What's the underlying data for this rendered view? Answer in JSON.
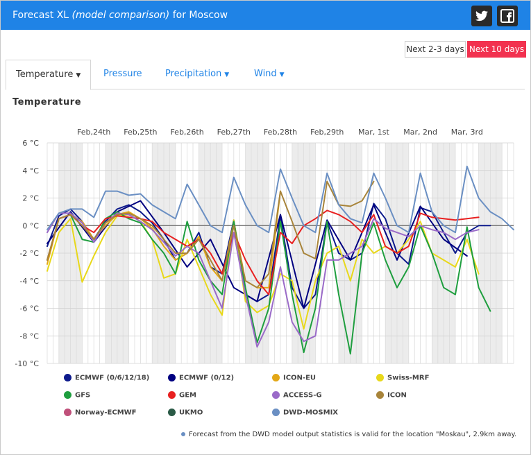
{
  "header": {
    "title_prefix": "Forecast XL",
    "title_italic": "(model comparison)",
    "title_suffix": "for Moscow",
    "twitter_icon_label": "t",
    "facebook_icon_label": "f"
  },
  "buttons": {
    "next_2_3": "Next 2-3 days",
    "next_10": "Next 10 days"
  },
  "tabs": [
    {
      "label": "Temperature",
      "active": true
    },
    {
      "label": "Pressure"
    },
    {
      "label": "Precipitation"
    },
    {
      "label": "Wind"
    }
  ],
  "section_title": "Temperature",
  "note": "Forecast from the DWD model output statistics is valid for the location \"Moskau\", 2.9km away.",
  "legend": [
    {
      "name": "ECMWF (0/6/12/18)",
      "color": "#0d1a8c"
    },
    {
      "name": "ECMWF (0/12)",
      "color": "#000080"
    },
    {
      "name": "ICON-EU",
      "color": "#e3a716"
    },
    {
      "name": "Swiss-MRF",
      "color": "#e8d81a"
    },
    {
      "name": "GFS",
      "color": "#1e9e3e"
    },
    {
      "name": "GEM",
      "color": "#e82020"
    },
    {
      "name": "ACCESS-G",
      "color": "#9a6ac8"
    },
    {
      "name": "ICON",
      "color": "#a8843a"
    },
    {
      "name": "Norway-ECMWF",
      "color": "#c0507a"
    },
    {
      "name": "UKMO",
      "color": "#2a5a46"
    },
    {
      "name": "DWD-MOSMIX",
      "color": "#6a8fc3"
    }
  ],
  "chart_data": {
    "type": "line",
    "title": "Temperature",
    "ylim": [
      -10,
      6
    ],
    "y_ticks": [
      6,
      4,
      2,
      0,
      -2,
      -4,
      -6,
      -8,
      -10
    ],
    "y_tick_labels": [
      "6 °C",
      "4 °C",
      "2 °C",
      "0 °C",
      "-2 °C",
      "-4 °C",
      "-6 °C",
      "-8 °C",
      "-10 °C"
    ],
    "x_range_hours": [
      0,
      240
    ],
    "x_date_labels": [
      {
        "label": "Feb,24th",
        "hour": 24
      },
      {
        "label": "Feb,25th",
        "hour": 48
      },
      {
        "label": "Feb,26th",
        "hour": 72
      },
      {
        "label": "Feb,27th",
        "hour": 96
      },
      {
        "label": "Feb,28th",
        "hour": 120
      },
      {
        "label": "Feb,29th",
        "hour": 144
      },
      {
        "label": "Mar, 1st",
        "hour": 168
      },
      {
        "label": "Mar, 2nd",
        "hour": 192
      },
      {
        "label": "Mar, 3rd",
        "hour": 216
      }
    ],
    "night_bands_hours": [
      [
        6,
        18
      ],
      [
        30,
        42
      ],
      [
        54,
        66
      ],
      [
        78,
        90
      ],
      [
        102,
        114
      ],
      [
        126,
        138
      ],
      [
        150,
        162
      ],
      [
        174,
        186
      ],
      [
        198,
        210
      ],
      [
        222,
        234
      ]
    ],
    "grid": true,
    "series": [
      {
        "name": "ECMWF (0/6/12/18)",
        "color": "#0d1a8c",
        "x": [
          0,
          6,
          12,
          18,
          24,
          30,
          36,
          42,
          48,
          54,
          60,
          66,
          72,
          78,
          84,
          90,
          96,
          102,
          108,
          114,
          120,
          126,
          132,
          138,
          144,
          150,
          156,
          162,
          168,
          174,
          180,
          186,
          192,
          198,
          204,
          210,
          216,
          222,
          228
        ],
        "y": [
          -1.5,
          0.7,
          1.2,
          0.3,
          -1.0,
          0.3,
          1.2,
          1.5,
          1.0,
          0.2,
          -1.0,
          -2.5,
          -2.0,
          -0.5,
          -3.0,
          -3.5,
          0.4,
          -5.0,
          -5.5,
          -5.0,
          0.7,
          -4.5,
          -6.0,
          -5.0,
          0.3,
          -2.0,
          -2.5,
          -2.0,
          1.6,
          0.5,
          -2.0,
          -2.8,
          1.3,
          1.0,
          -0.5,
          -2.0,
          -0.5,
          0.0,
          0.0
        ]
      },
      {
        "name": "ECMWF (0/12)",
        "color": "#000080",
        "x": [
          0,
          12,
          24,
          36,
          48,
          60,
          72,
          84,
          96,
          108,
          120,
          132,
          144,
          156,
          168,
          180,
          192,
          204,
          216
        ],
        "y": [
          -1.3,
          1.0,
          -1.2,
          1.0,
          1.8,
          -0.5,
          -3.0,
          -1.0,
          -4.5,
          -5.5,
          0.8,
          -6.0,
          0.4,
          -2.5,
          1.5,
          -2.5,
          1.4,
          -1.0,
          -2.2
        ]
      },
      {
        "name": "ICON-EU",
        "color": "#e3a716",
        "x": [
          0,
          6,
          12,
          18,
          24,
          30,
          36,
          42,
          48,
          54,
          60,
          66,
          72,
          78,
          84,
          90,
          96,
          102,
          108,
          114,
          120
        ],
        "y": [
          -2.8,
          0.5,
          0.8,
          0.3,
          -1.0,
          0.0,
          0.8,
          1.0,
          0.5,
          -0.2,
          -1.5,
          -2.5,
          -2.0,
          -0.8,
          -3.0,
          -4.0,
          0.3,
          -4.0,
          -4.5,
          -4.5,
          2.5
        ]
      },
      {
        "name": "Swiss-MRF",
        "color": "#e8d81a",
        "x": [
          0,
          6,
          12,
          18,
          24,
          30,
          36,
          42,
          48,
          54,
          60,
          66,
          72,
          78,
          84,
          90,
          96,
          102,
          108,
          114,
          120,
          126,
          132,
          138,
          144,
          150,
          156,
          162,
          168,
          174,
          180,
          186,
          192,
          198,
          204,
          210,
          216,
          222
        ],
        "y": [
          -3.3,
          -0.5,
          0.5,
          -4.1,
          -2.2,
          -0.5,
          0.7,
          0.8,
          0.3,
          -1.0,
          -3.8,
          -3.5,
          -1.0,
          -3.0,
          -5.0,
          -6.5,
          0.4,
          -5.5,
          -6.3,
          -5.8,
          -3.5,
          -4.0,
          -7.5,
          -4.0,
          -2.0,
          -1.5,
          -4.0,
          -1.0,
          -2.0,
          -1.5,
          -2.0,
          -1.0,
          0.3,
          -2.0,
          -2.5,
          -3.0,
          -1.0,
          -3.5
        ]
      },
      {
        "name": "GFS",
        "color": "#1e9e3e",
        "x": [
          0,
          6,
          12,
          18,
          24,
          30,
          36,
          42,
          48,
          54,
          60,
          66,
          72,
          78,
          84,
          90,
          96,
          102,
          108,
          114,
          120,
          126,
          132,
          138,
          144,
          150,
          156,
          162,
          168,
          174,
          180,
          186,
          192,
          198,
          204,
          210,
          216,
          222,
          228
        ],
        "y": [
          -2.5,
          0.5,
          0.8,
          -1.0,
          -1.2,
          0.5,
          1.0,
          0.5,
          0.2,
          -1.0,
          -2.0,
          -3.5,
          0.3,
          -2.5,
          -4.0,
          -5.0,
          0.3,
          -4.5,
          -8.5,
          -6.0,
          0.3,
          -5.0,
          -9.2,
          -6.0,
          0.3,
          -5.0,
          -9.3,
          -2.0,
          0.2,
          -2.5,
          -4.5,
          -3.0,
          0.0,
          -2.0,
          -4.5,
          -5.0,
          -0.1,
          -4.5,
          -6.2
        ]
      },
      {
        "name": "GEM",
        "color": "#e82020",
        "x": [
          0,
          6,
          12,
          18,
          24,
          30,
          36,
          42,
          48,
          54,
          60,
          66,
          72,
          78,
          84,
          90,
          96,
          102,
          108,
          114,
          120,
          126,
          132,
          138,
          144,
          150,
          156,
          162,
          168,
          174,
          180,
          186,
          192,
          198,
          204,
          210,
          216,
          222
        ],
        "y": [
          -2.5,
          0.5,
          0.8,
          0.0,
          -0.5,
          0.5,
          0.7,
          0.6,
          0.5,
          0.3,
          -0.5,
          -1.0,
          -1.5,
          -1.0,
          -2.0,
          -3.5,
          -0.5,
          -2.5,
          -4.0,
          -5.0,
          -0.5,
          -1.3,
          0.0,
          0.5,
          1.1,
          0.8,
          0.3,
          -0.5,
          0.8,
          -1.5,
          -2.0,
          -1.5,
          0.9,
          0.6,
          0.5,
          0.4,
          0.5,
          0.6
        ]
      },
      {
        "name": "ACCESS-G",
        "color": "#9a6ac8",
        "x": [
          0,
          6,
          12,
          18,
          24,
          30,
          36,
          42,
          48,
          54,
          60,
          66,
          72,
          78,
          84,
          90,
          96,
          102,
          108,
          114,
          120,
          126,
          132,
          138,
          144,
          150,
          156,
          162,
          168,
          174,
          180,
          186,
          192,
          198,
          204,
          210,
          216,
          222
        ],
        "y": [
          -0.5,
          0.9,
          0.9,
          0.2,
          -1.2,
          0.2,
          0.9,
          0.8,
          0.3,
          -0.3,
          -1.2,
          -2.2,
          -1.5,
          -2.0,
          -4.0,
          -6.0,
          -0.5,
          -5.0,
          -8.8,
          -7.0,
          -3.0,
          -7.0,
          -8.4,
          -8.0,
          -2.5,
          -2.5,
          -2.0,
          -1.5,
          0.5,
          -0.2,
          -0.5,
          -0.8,
          0.0,
          -0.3,
          -0.5,
          -1.0,
          -0.5,
          -0.3
        ]
      },
      {
        "name": "ICON",
        "color": "#a8843a",
        "x": [
          0,
          6,
          12,
          18,
          24,
          30,
          36,
          42,
          48,
          54,
          60,
          66,
          72,
          78,
          84,
          90,
          96,
          102,
          108,
          114,
          120,
          126,
          132,
          138,
          144,
          150,
          156,
          162,
          168
        ],
        "y": [
          -2.5,
          0.5,
          0.8,
          0.0,
          -1.0,
          0.2,
          0.8,
          0.9,
          0.5,
          0.0,
          -1.0,
          -2.0,
          -2.0,
          -1.0,
          -2.5,
          -4.0,
          0.0,
          -4.0,
          -4.5,
          -3.5,
          2.5,
          0.3,
          -2.0,
          -2.4,
          3.2,
          1.5,
          1.4,
          1.8,
          3.2
        ]
      },
      {
        "name": "DWD-MOSMIX",
        "color": "#6a8fc3",
        "x": [
          0,
          6,
          12,
          18,
          24,
          30,
          36,
          42,
          48,
          54,
          60,
          66,
          72,
          78,
          84,
          90,
          96,
          102,
          108,
          114,
          120,
          126,
          132,
          138,
          144,
          150,
          156,
          162,
          168,
          174,
          180,
          186,
          192,
          198,
          204,
          210,
          216,
          222,
          228,
          234,
          240
        ],
        "y": [
          -0.3,
          0.9,
          1.2,
          1.2,
          0.6,
          2.5,
          2.5,
          2.2,
          2.3,
          1.5,
          1.0,
          0.5,
          3.0,
          1.5,
          0.0,
          -0.5,
          3.5,
          1.5,
          0.0,
          -0.5,
          4.1,
          2.0,
          0.0,
          -0.5,
          3.8,
          1.5,
          0.5,
          0.2,
          3.8,
          2.0,
          0.0,
          -0.5,
          3.8,
          1.0,
          0.0,
          -0.5,
          4.3,
          2.0,
          1.0,
          0.5,
          -0.3
        ]
      }
    ]
  }
}
